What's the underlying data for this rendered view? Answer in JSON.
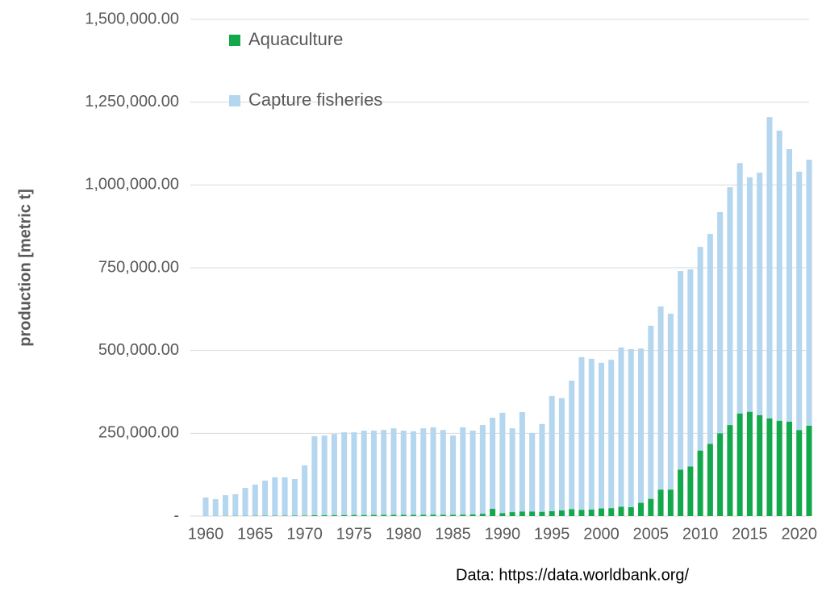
{
  "chart_data": {
    "type": "stacked_bar",
    "y_label": "production [metric t]",
    "source": "Data: https://data.worldbank.org/",
    "categories": [
      1960,
      null,
      null,
      null,
      null,
      1965,
      null,
      null,
      null,
      null,
      1970,
      null,
      null,
      null,
      null,
      1975,
      null,
      null,
      null,
      null,
      1980,
      null,
      null,
      null,
      null,
      1985,
      null,
      null,
      null,
      null,
      1990,
      null,
      null,
      null,
      null,
      1995,
      null,
      null,
      null,
      null,
      2000,
      null,
      null,
      null,
      null,
      2005,
      null,
      null,
      null,
      null,
      2010,
      null,
      null,
      null,
      null,
      2015,
      null,
      null,
      null,
      null,
      2020,
      null
    ],
    "series": [
      {
        "name": "Aquaculture",
        "color": "#13a84b",
        "values": [
          500,
          500,
          600,
          700,
          800,
          900,
          1000,
          1000,
          1100,
          1200,
          1500,
          2500,
          2800,
          3000,
          3200,
          3400,
          3300,
          3500,
          3600,
          3800,
          3700,
          3900,
          4200,
          4500,
          4300,
          4000,
          4500,
          5000,
          7000,
          22000,
          9000,
          12000,
          14000,
          14000,
          13000,
          15000,
          17000,
          21000,
          19000,
          20000,
          23000,
          24000,
          28000,
          27000,
          40000,
          52000,
          80000,
          80000,
          140000,
          150000,
          198000,
          218000,
          250000,
          275000,
          310000,
          315000,
          305000,
          295000,
          288000,
          285000,
          260000,
          273000
        ]
      },
      {
        "name": "Capture fisheries",
        "color": "#b4d6ee",
        "values": [
          55500,
          50500,
          62400,
          65300,
          84200,
          94100,
          106000,
          116000,
          115900,
          110800,
          151500,
          238500,
          240200,
          245000,
          249800,
          249600,
          254700,
          254500,
          256400,
          261200,
          254300,
          252100,
          260800,
          263500,
          255700,
          239000,
          263500,
          253000,
          268000,
          275000,
          303000,
          253000,
          300000,
          237000,
          265000,
          348000,
          339000,
          388000,
          461000,
          455000,
          440000,
          448000,
          481000,
          477000,
          466000,
          523000,
          553000,
          531000,
          600000,
          595000,
          615000,
          634000,
          668000,
          718000,
          756000,
          708000,
          732000,
          910000,
          876000,
          823000,
          780000,
          803000
        ]
      }
    ],
    "ylim": [
      0,
      1500000
    ],
    "yticks": [
      {
        "value": 0,
        "label": "-"
      },
      {
        "value": 250000,
        "label": "250,000.00"
      },
      {
        "value": 500000,
        "label": "500,000.00"
      },
      {
        "value": 750000,
        "label": "750,000.00"
      },
      {
        "value": 1000000,
        "label": "1,000,000.00"
      },
      {
        "value": 1250000,
        "label": "1,250,000.00"
      },
      {
        "value": 1500000,
        "label": "1,500,000.00"
      }
    ],
    "grid": true,
    "legend": "top-left"
  }
}
